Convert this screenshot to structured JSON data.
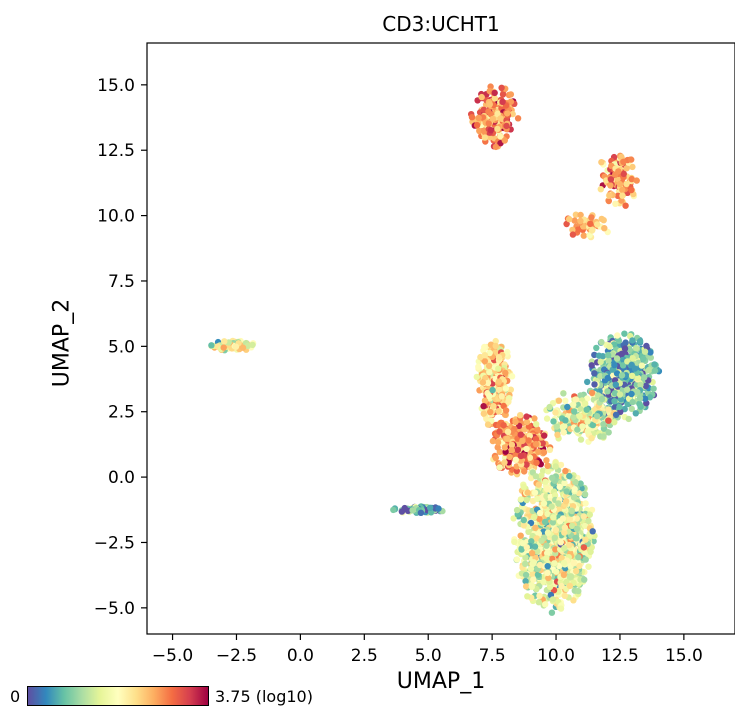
{
  "chart_data": {
    "type": "scatter",
    "title": "CD3:UCHT1",
    "xlabel": "UMAP_1",
    "ylabel": "UMAP_2",
    "xlim": [
      -6.0,
      17.0
    ],
    "ylim": [
      -6.0,
      16.6
    ],
    "xticks": [
      "−5.0",
      "−2.5",
      "0.0",
      "2.5",
      "5.0",
      "7.5",
      "10.0",
      "12.5",
      "15.0"
    ],
    "xtick_values": [
      -5.0,
      -2.5,
      0.0,
      2.5,
      5.0,
      7.5,
      10.0,
      12.5,
      15.0
    ],
    "yticks": [
      "−5.0",
      "−2.5",
      "0.0",
      "2.5",
      "5.0",
      "7.5",
      "10.0",
      "12.5",
      "15.0"
    ],
    "ytick_values": [
      -5.0,
      -2.5,
      0.0,
      2.5,
      5.0,
      7.5,
      10.0,
      12.5,
      15.0
    ],
    "grid": false,
    "colormap": "Spectral_r",
    "colorbar": {
      "min_label": "0",
      "max_label": "3.75 (log10)",
      "min": 0,
      "max": 3.75,
      "placement": "bottom-left"
    },
    "clusters": [
      {
        "name": "",
        "center": [
          7.6,
          13.8
        ],
        "spread": [
          0.7,
          0.9
        ],
        "n": 240,
        "mean_value": 2.8,
        "sd": 0.45
      },
      {
        "name": "",
        "center": [
          12.4,
          11.4
        ],
        "spread": [
          0.6,
          0.9
        ],
        "n": 120,
        "mean_value": 2.7,
        "sd": 0.45
      },
      {
        "name": "",
        "center": [
          11.2,
          9.6
        ],
        "spread": [
          0.7,
          0.4
        ],
        "n": 45,
        "mean_value": 2.6,
        "sd": 0.5
      },
      {
        "name": "",
        "center": [
          -2.6,
          5.0
        ],
        "spread": [
          0.75,
          0.18
        ],
        "n": 70,
        "mean_value": 1.9,
        "sd": 0.6
      },
      {
        "name": "",
        "center": [
          4.6,
          -1.25
        ],
        "spread": [
          0.8,
          0.12
        ],
        "n": 60,
        "mean_value": 0.7,
        "sd": 0.5
      },
      {
        "name": "",
        "center": [
          12.6,
          3.8
        ],
        "spread": [
          1.1,
          1.3
        ],
        "n": 520,
        "mean_value": 0.8,
        "sd": 0.55
      },
      {
        "name": "",
        "center": [
          11.0,
          2.3
        ],
        "spread": [
          1.1,
          0.8
        ],
        "n": 260,
        "mean_value": 1.6,
        "sd": 0.55
      },
      {
        "name": "",
        "center": [
          7.6,
          3.6
        ],
        "spread": [
          0.55,
          1.3
        ],
        "n": 260,
        "mean_value": 2.3,
        "sd": 0.55
      },
      {
        "name": "",
        "center": [
          8.6,
          1.2
        ],
        "spread": [
          0.9,
          0.9
        ],
        "n": 320,
        "mean_value": 2.8,
        "sd": 0.45
      },
      {
        "name": "",
        "center": [
          9.9,
          -2.3
        ],
        "spread": [
          1.25,
          2.2
        ],
        "n": 1100,
        "mean_value": 1.6,
        "sd": 0.55
      }
    ]
  }
}
